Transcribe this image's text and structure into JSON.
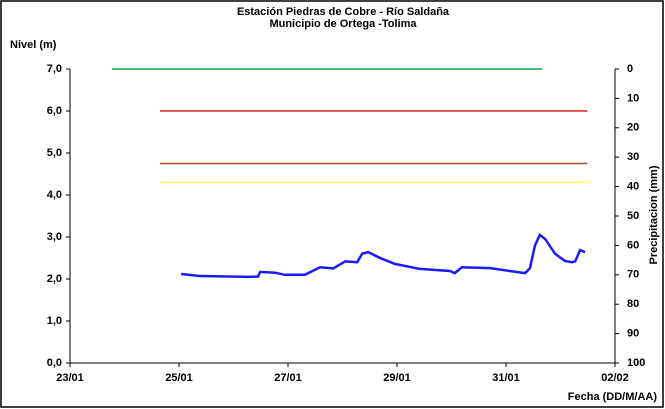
{
  "chart_data": {
    "type": "line",
    "title": [
      "Estación Piedras de Cobre - Río Saldaña",
      "Municipio de Ortega -Tolima"
    ],
    "y_label": "Nivel (m)",
    "y2_label": "Precipitacion (mm)",
    "x_label": "Fecha (DD/M/AA)",
    "xlim": [
      23,
      33
    ],
    "xticks": [
      {
        "value": 23,
        "label": "23/01"
      },
      {
        "value": 25,
        "label": "25/01"
      },
      {
        "value": 27,
        "label": "27/01"
      },
      {
        "value": 29,
        "label": "29/01"
      },
      {
        "value": 31,
        "label": "31/01"
      },
      {
        "value": 33,
        "label": "02/02"
      }
    ],
    "ylim": [
      0,
      7
    ],
    "yticks": [
      {
        "value": 0,
        "label": "0,0"
      },
      {
        "value": 1,
        "label": "1,0"
      },
      {
        "value": 2,
        "label": "2,0"
      },
      {
        "value": 3,
        "label": "3,0"
      },
      {
        "value": 4,
        "label": "4,0"
      },
      {
        "value": 5,
        "label": "5,0"
      },
      {
        "value": 6,
        "label": "6,0"
      },
      {
        "value": 7,
        "label": "7,0"
      }
    ],
    "y2lim": [
      100,
      0
    ],
    "y2ticks": [
      0,
      10,
      20,
      30,
      40,
      50,
      60,
      70,
      80,
      90,
      100
    ],
    "grid": false,
    "series": [
      {
        "color": "#00a651",
        "x": [
          23.77,
          31.66
        ],
        "values": [
          7.0,
          7.0
        ]
      },
      {
        "color": "#e0201b",
        "x": [
          24.65,
          32.49
        ],
        "values": [
          6.0,
          6.0
        ]
      },
      {
        "color": "#a0522d",
        "x": [
          24.65,
          32.49
        ],
        "values": [
          4.75,
          4.75
        ]
      },
      {
        "color": "#ffff66",
        "x": [
          24.65,
          32.49
        ],
        "values": [
          4.3,
          4.3
        ]
      },
      {
        "color": "#1a1aff",
        "x": [
          25.04,
          25.39,
          26.3,
          26.45,
          26.49,
          26.76,
          26.94,
          27.31,
          27.59,
          27.83,
          28.05,
          28.27,
          28.36,
          28.47,
          28.69,
          28.96,
          29.42,
          29.97,
          30.06,
          30.19,
          30.71,
          31.07,
          31.35,
          31.44,
          31.53,
          31.62,
          31.72,
          31.9,
          32.08,
          32.21,
          32.27,
          32.36,
          32.45
        ],
        "values": [
          2.12,
          2.07,
          2.05,
          2.06,
          2.17,
          2.15,
          2.1,
          2.1,
          2.28,
          2.25,
          2.42,
          2.4,
          2.6,
          2.64,
          2.5,
          2.36,
          2.24,
          2.19,
          2.14,
          2.28,
          2.26,
          2.19,
          2.14,
          2.26,
          2.79,
          3.05,
          2.95,
          2.6,
          2.43,
          2.4,
          2.42,
          2.69,
          2.64
        ]
      }
    ]
  }
}
